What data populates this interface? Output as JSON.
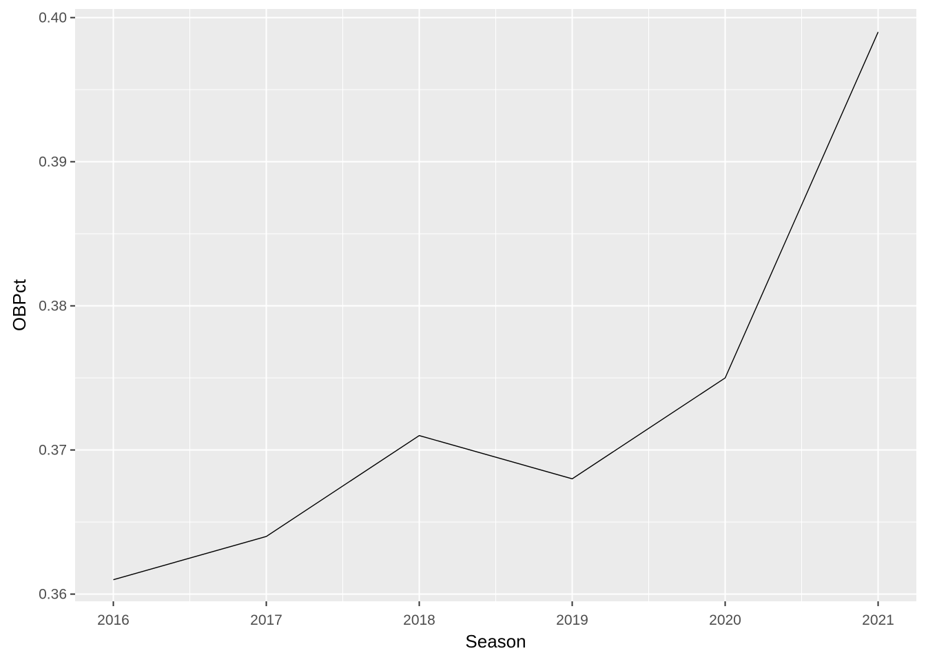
{
  "chart_data": {
    "type": "line",
    "title": "",
    "xlabel": "Season",
    "ylabel": "OBPct",
    "x": [
      2016,
      2017,
      2018,
      2019,
      2020,
      2021
    ],
    "series": [
      {
        "values": [
          0.361,
          0.364,
          0.371,
          0.368,
          0.375,
          0.399
        ]
      }
    ],
    "xticks": [
      "2016",
      "2017",
      "2018",
      "2019",
      "2020",
      "2021"
    ],
    "yticks": [
      "0.36",
      "0.37",
      "0.38",
      "0.39",
      "0.40"
    ],
    "ylim": [
      0.3595,
      0.4006
    ],
    "xlim": [
      2015.75,
      2021.25
    ],
    "grid": true,
    "colors": {
      "panel": "#ebebeb",
      "grid_major": "#ffffff",
      "line": "#000000",
      "tick_text": "#4d4d4d",
      "axis_tick": "#333333"
    }
  }
}
